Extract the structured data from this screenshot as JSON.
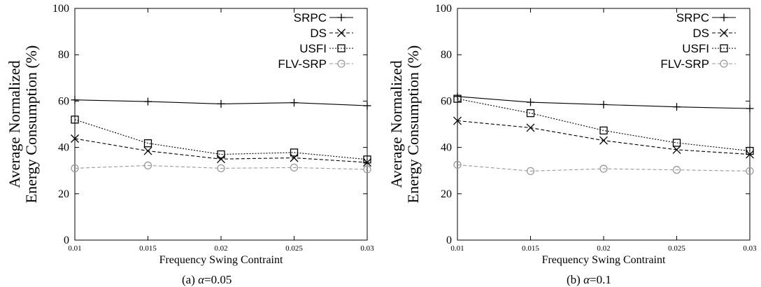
{
  "figure": {
    "chart_data": [
      {
        "type": "line",
        "caption_prefix": "(a)",
        "caption_symbol": "α",
        "caption_value": "=0.05",
        "xlabel": "Frequency Swing Contraint",
        "ylabel_line1": "Average Normalized",
        "ylabel_line2": "Energy Consumption (%)",
        "x": [
          0.01,
          0.015,
          0.02,
          0.025,
          0.03
        ],
        "x_tick_labels": [
          "0.01",
          "0.015",
          "0.02",
          "0.025",
          "0.03"
        ],
        "y_ticks": [
          0,
          20,
          40,
          60,
          80,
          100
        ],
        "xlim": [
          0.01,
          0.03
        ],
        "ylim": [
          0,
          100
        ],
        "grid": false,
        "legend_position": "top-right",
        "series": [
          {
            "name": "SRPC",
            "marker": "plus",
            "dash": "solid",
            "color": "#000000",
            "values": [
              60.5,
              59.8,
              58.8,
              59.3,
              58.0
            ]
          },
          {
            "name": "DS",
            "marker": "cross",
            "dash": "dashed",
            "color": "#000000",
            "values": [
              43.8,
              38.5,
              35.0,
              35.5,
              33.5
            ]
          },
          {
            "name": "USFI",
            "marker": "square",
            "dash": "dotted",
            "color": "#000000",
            "values": [
              52.0,
              41.8,
              37.0,
              37.8,
              34.8
            ]
          },
          {
            "name": "FLV-SRP",
            "marker": "circle",
            "dash": "dashed",
            "color": "#9a9a9a",
            "values": [
              31.0,
              32.2,
              31.0,
              31.3,
              30.5
            ]
          }
        ]
      },
      {
        "type": "line",
        "caption_prefix": "(b)",
        "caption_symbol": "α",
        "caption_value": "=0.1",
        "xlabel": "Frequency Swing Contraint",
        "ylabel_line1": "Average Normalized",
        "ylabel_line2": "Energy Consumption (%)",
        "x": [
          0.01,
          0.015,
          0.02,
          0.025,
          0.03
        ],
        "x_tick_labels": [
          "0.01",
          "0.015",
          "0.02",
          "0.025",
          "0.03"
        ],
        "y_ticks": [
          0,
          20,
          40,
          60,
          80,
          100
        ],
        "xlim": [
          0.01,
          0.03
        ],
        "ylim": [
          0,
          100
        ],
        "grid": false,
        "legend_position": "top-right",
        "series": [
          {
            "name": "SRPC",
            "marker": "plus",
            "dash": "solid",
            "color": "#000000",
            "values": [
              62.0,
              59.5,
              58.5,
              57.5,
              56.8
            ]
          },
          {
            "name": "DS",
            "marker": "cross",
            "dash": "dashed",
            "color": "#000000",
            "values": [
              51.5,
              48.5,
              43.0,
              39.0,
              37.0
            ]
          },
          {
            "name": "USFI",
            "marker": "square",
            "dash": "dotted",
            "color": "#000000",
            "values": [
              61.0,
              54.8,
              47.3,
              42.0,
              38.5
            ]
          },
          {
            "name": "FLV-SRP",
            "marker": "circle",
            "dash": "dashed",
            "color": "#9a9a9a",
            "values": [
              32.5,
              29.8,
              30.8,
              30.3,
              29.8
            ]
          }
        ]
      }
    ]
  }
}
